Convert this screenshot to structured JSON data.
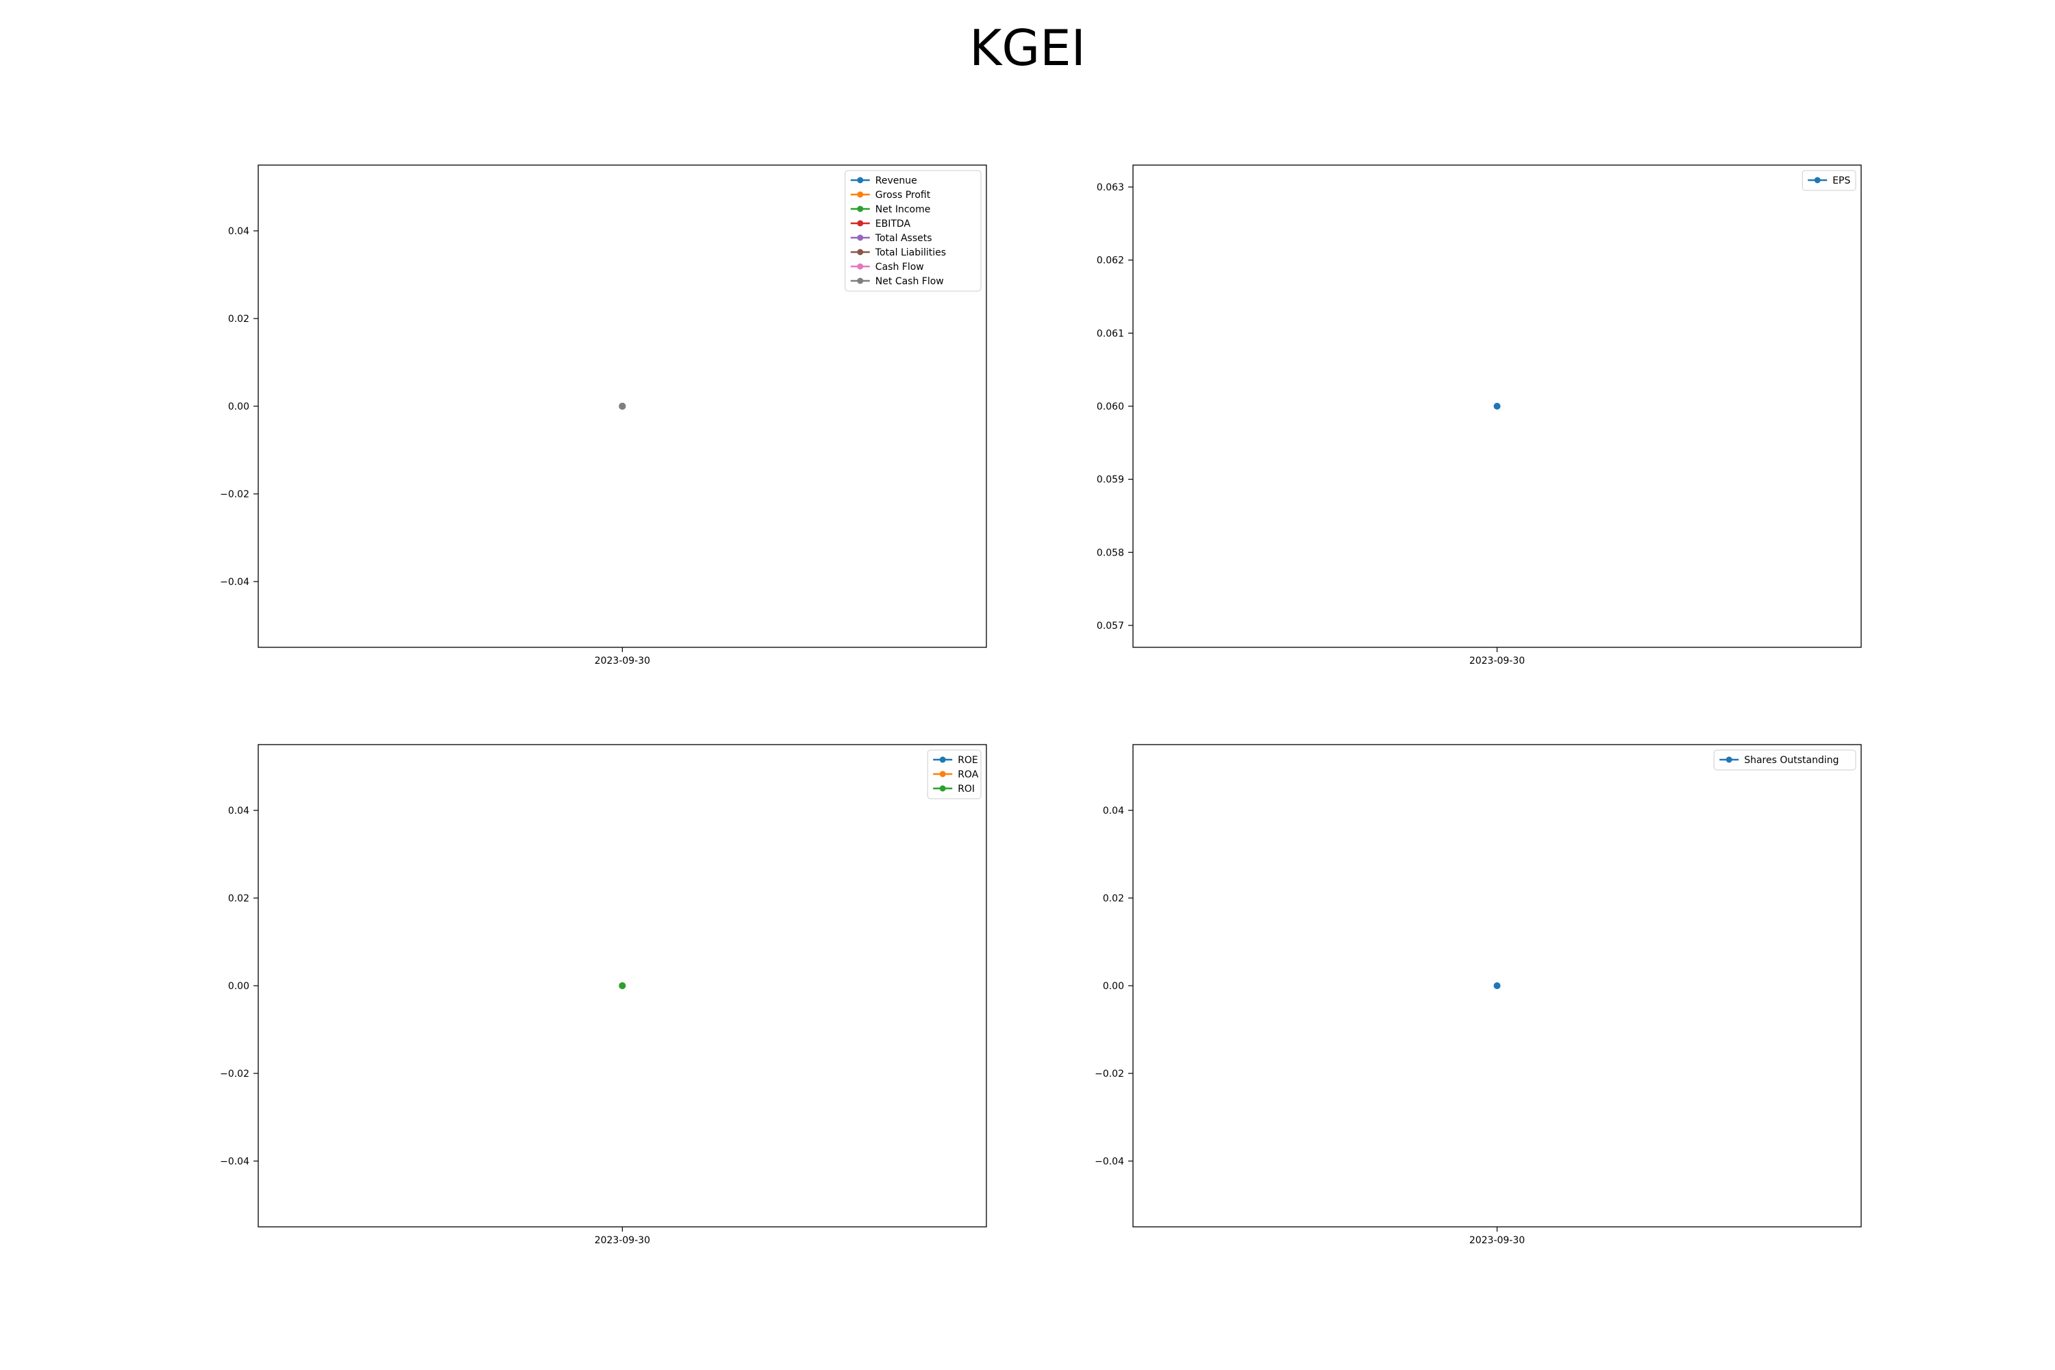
{
  "figure": {
    "title": "KGEI"
  },
  "chart_data": [
    {
      "type": "line",
      "title": "",
      "xlabel": "",
      "ylabel": "",
      "x": [
        "2023-09-30"
      ],
      "ylim": [
        -0.055,
        0.055
      ],
      "yticks": [
        -0.04,
        -0.02,
        0.0,
        0.02,
        0.04
      ],
      "ytick_labels": [
        "−0.04",
        "−0.02",
        "0.00",
        "0.02",
        "0.04"
      ],
      "grid": false,
      "legend": "top-right",
      "series": [
        {
          "name": "Revenue",
          "color": "#1f77b4",
          "values": [
            0
          ]
        },
        {
          "name": "Gross Profit",
          "color": "#ff7f0e",
          "values": [
            0
          ]
        },
        {
          "name": "Net Income",
          "color": "#2ca02c",
          "values": [
            0
          ]
        },
        {
          "name": "EBITDA",
          "color": "#d62728",
          "values": [
            0
          ]
        },
        {
          "name": "Total Assets",
          "color": "#9467bd",
          "values": [
            0
          ]
        },
        {
          "name": "Total Liabilities",
          "color": "#8c564b",
          "values": [
            0
          ]
        },
        {
          "name": "Cash Flow",
          "color": "#e377c2",
          "values": [
            0
          ]
        },
        {
          "name": "Net Cash Flow",
          "color": "#7f7f7f",
          "values": [
            0
          ]
        }
      ]
    },
    {
      "type": "line",
      "title": "",
      "xlabel": "",
      "ylabel": "",
      "x": [
        "2023-09-30"
      ],
      "ylim": [
        0.0567,
        0.0633
      ],
      "yticks": [
        0.057,
        0.058,
        0.059,
        0.06,
        0.061,
        0.062,
        0.063
      ],
      "ytick_labels": [
        "0.057",
        "0.058",
        "0.059",
        "0.060",
        "0.061",
        "0.062",
        "0.063"
      ],
      "grid": false,
      "legend": "top-right",
      "series": [
        {
          "name": "EPS",
          "color": "#1f77b4",
          "values": [
            0.06
          ]
        }
      ]
    },
    {
      "type": "line",
      "title": "",
      "xlabel": "",
      "ylabel": "",
      "x": [
        "2023-09-30"
      ],
      "ylim": [
        -0.055,
        0.055
      ],
      "yticks": [
        -0.04,
        -0.02,
        0.0,
        0.02,
        0.04
      ],
      "ytick_labels": [
        "−0.04",
        "−0.02",
        "0.00",
        "0.02",
        "0.04"
      ],
      "grid": false,
      "legend": "top-right",
      "series": [
        {
          "name": "ROE",
          "color": "#1f77b4",
          "values": [
            0
          ]
        },
        {
          "name": "ROA",
          "color": "#ff7f0e",
          "values": [
            0
          ]
        },
        {
          "name": "ROI",
          "color": "#2ca02c",
          "values": [
            0
          ]
        }
      ]
    },
    {
      "type": "line",
      "title": "",
      "xlabel": "",
      "ylabel": "",
      "x": [
        "2023-09-30"
      ],
      "ylim": [
        -0.055,
        0.055
      ],
      "yticks": [
        -0.04,
        -0.02,
        0.0,
        0.02,
        0.04
      ],
      "ytick_labels": [
        "−0.04",
        "−0.02",
        "0.00",
        "0.02",
        "0.04"
      ],
      "grid": false,
      "legend": "top-right",
      "series": [
        {
          "name": "Shares Outstanding",
          "color": "#1f77b4",
          "values": [
            0
          ]
        }
      ]
    }
  ]
}
